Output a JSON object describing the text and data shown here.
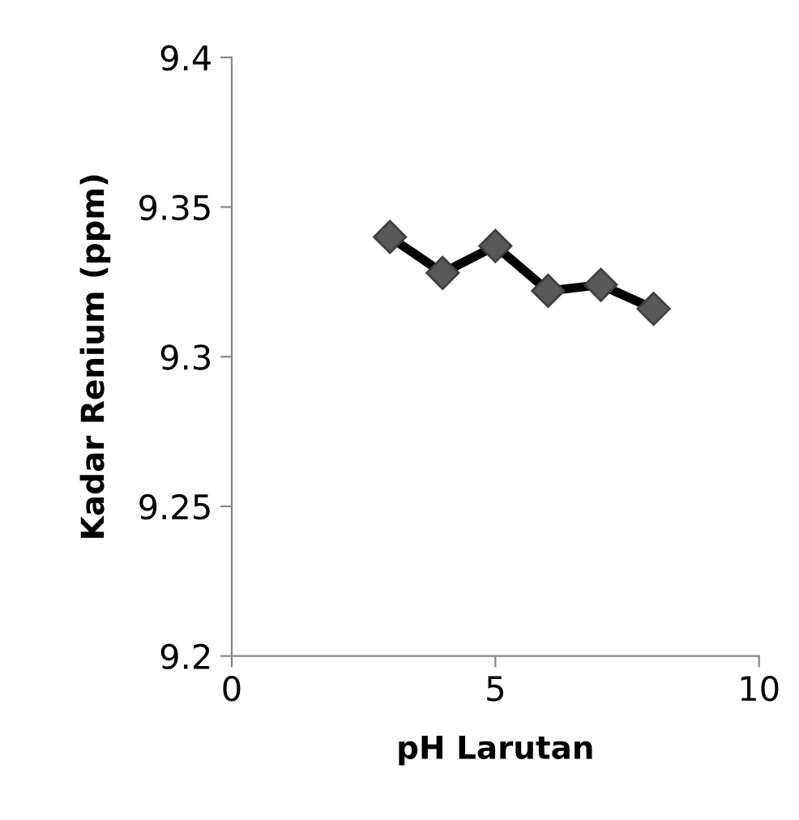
{
  "chart_data": {
    "type": "line",
    "xlabel": "pH Larutan",
    "ylabel": "Kadar Renium (ppm)",
    "series": [
      {
        "color": "#000000",
        "x": [
          3,
          4,
          5,
          6,
          7,
          8
        ],
        "values": [
          9.34,
          9.328,
          9.337,
          9.322,
          9.324,
          9.316
        ]
      }
    ],
    "marker": "diamond",
    "xlim": [
      0,
      10
    ],
    "xticks": [
      0,
      5,
      10
    ],
    "ylim": [
      9.2,
      9.4
    ],
    "yticks": [
      9.2,
      9.25,
      9.3,
      9.35,
      9.4
    ],
    "grid": false,
    "legend": false
  }
}
